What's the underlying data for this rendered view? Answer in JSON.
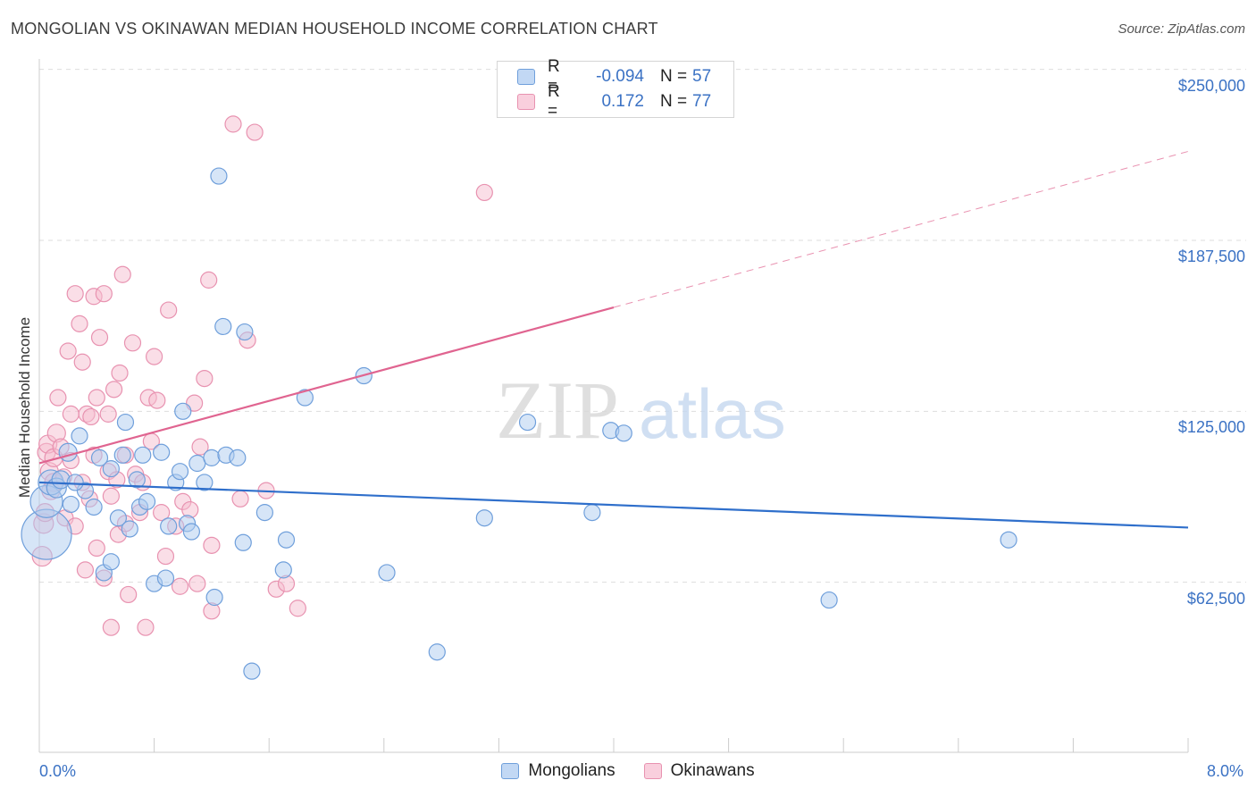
{
  "title": "MONGOLIAN VS OKINAWAN MEDIAN HOUSEHOLD INCOME CORRELATION CHART",
  "source": "Source: ZipAtlas.com",
  "watermark": {
    "zip": "ZIP",
    "atlas": "atlas"
  },
  "legend": {
    "rows": [
      {
        "r_label": "R =",
        "r_value": "-0.094",
        "n_label": "N =",
        "n_value": "57"
      },
      {
        "r_label": "R =",
        "r_value": "0.172",
        "n_label": "N =",
        "n_value": "77"
      }
    ]
  },
  "colors": {
    "mongolians_fill": "#aecbf0",
    "mongolians_stroke": "#6f9fdb",
    "mongolians_line": "#2f6fcb",
    "okinawans_fill": "#f6bdd0",
    "okinawans_stroke": "#e892b0",
    "okinawans_line": "#e06490",
    "tick_label": "#3b72c4",
    "grid": "#dddddd"
  },
  "chart_data": {
    "type": "scatter",
    "title": "MONGOLIAN VS OKINAWAN MEDIAN HOUSEHOLD INCOME CORRELATION CHART",
    "ylabel": "Median Household Income",
    "xlabel": "",
    "xlim": [
      0,
      8
    ],
    "ylim": [
      0,
      260000
    ],
    "x_tick_labels": [
      "0.0%",
      "8.0%"
    ],
    "y_ticks": [
      {
        "value": 62500,
        "label": "$62,500"
      },
      {
        "value": 125000,
        "label": "$125,000"
      },
      {
        "value": 187500,
        "label": "$187,500"
      },
      {
        "value": 250000,
        "label": "$250,000"
      }
    ],
    "grid": "horizontal dashed",
    "legend_placement": "bottom-center",
    "series": [
      {
        "name": "Mongolians",
        "r": -0.094,
        "n": 57,
        "trend": {
          "x": [
            0,
            8
          ],
          "y": [
            99000,
            82500
          ],
          "dashed_from": null
        },
        "points": [
          {
            "x": 0.05,
            "y": 80000,
            "s": 28
          },
          {
            "x": 0.05,
            "y": 92000,
            "s": 18
          },
          {
            "x": 0.08,
            "y": 99000,
            "s": 14
          },
          {
            "x": 0.12,
            "y": 97000,
            "s": 11
          },
          {
            "x": 0.15,
            "y": 100000,
            "s": 10
          },
          {
            "x": 0.2,
            "y": 110000,
            "s": 10
          },
          {
            "x": 0.28,
            "y": 116000,
            "s": 9
          },
          {
            "x": 0.32,
            "y": 96000,
            "s": 9
          },
          {
            "x": 0.22,
            "y": 91000,
            "s": 9
          },
          {
            "x": 0.38,
            "y": 90000,
            "s": 9
          },
          {
            "x": 0.42,
            "y": 108000,
            "s": 9
          },
          {
            "x": 0.45,
            "y": 66000,
            "s": 9
          },
          {
            "x": 0.5,
            "y": 104000,
            "s": 9
          },
          {
            "x": 0.5,
            "y": 70000,
            "s": 9
          },
          {
            "x": 0.55,
            "y": 86000,
            "s": 9
          },
          {
            "x": 0.58,
            "y": 109000,
            "s": 9
          },
          {
            "x": 0.6,
            "y": 121000,
            "s": 9
          },
          {
            "x": 0.63,
            "y": 82000,
            "s": 9
          },
          {
            "x": 0.68,
            "y": 100000,
            "s": 9
          },
          {
            "x": 0.7,
            "y": 90000,
            "s": 9
          },
          {
            "x": 0.72,
            "y": 109000,
            "s": 9
          },
          {
            "x": 0.75,
            "y": 92000,
            "s": 9
          },
          {
            "x": 0.8,
            "y": 62000,
            "s": 9
          },
          {
            "x": 0.85,
            "y": 110000,
            "s": 9
          },
          {
            "x": 0.88,
            "y": 64000,
            "s": 9
          },
          {
            "x": 0.9,
            "y": 83000,
            "s": 9
          },
          {
            "x": 0.95,
            "y": 99000,
            "s": 9
          },
          {
            "x": 0.98,
            "y": 103000,
            "s": 9
          },
          {
            "x": 1.0,
            "y": 125000,
            "s": 9
          },
          {
            "x": 1.03,
            "y": 84000,
            "s": 9
          },
          {
            "x": 1.06,
            "y": 81000,
            "s": 9
          },
          {
            "x": 1.1,
            "y": 106000,
            "s": 9
          },
          {
            "x": 1.15,
            "y": 99000,
            "s": 9
          },
          {
            "x": 1.2,
            "y": 108000,
            "s": 9
          },
          {
            "x": 1.22,
            "y": 57000,
            "s": 9
          },
          {
            "x": 1.25,
            "y": 211000,
            "s": 9
          },
          {
            "x": 1.28,
            "y": 156000,
            "s": 9
          },
          {
            "x": 1.3,
            "y": 109000,
            "s": 9
          },
          {
            "x": 1.38,
            "y": 108000,
            "s": 9
          },
          {
            "x": 1.42,
            "y": 77000,
            "s": 9
          },
          {
            "x": 1.43,
            "y": 154000,
            "s": 9
          },
          {
            "x": 1.48,
            "y": 30000,
            "s": 9
          },
          {
            "x": 1.57,
            "y": 88000,
            "s": 9
          },
          {
            "x": 1.7,
            "y": 67000,
            "s": 9
          },
          {
            "x": 1.72,
            "y": 78000,
            "s": 9
          },
          {
            "x": 1.85,
            "y": 130000,
            "s": 9
          },
          {
            "x": 2.26,
            "y": 138000,
            "s": 9
          },
          {
            "x": 2.42,
            "y": 66000,
            "s": 9
          },
          {
            "x": 2.77,
            "y": 37000,
            "s": 9
          },
          {
            "x": 3.1,
            "y": 86000,
            "s": 9
          },
          {
            "x": 3.4,
            "y": 121000,
            "s": 9
          },
          {
            "x": 3.85,
            "y": 88000,
            "s": 9
          },
          {
            "x": 3.98,
            "y": 118000,
            "s": 9
          },
          {
            "x": 4.07,
            "y": 117000,
            "s": 9
          },
          {
            "x": 5.5,
            "y": 56000,
            "s": 9
          },
          {
            "x": 6.75,
            "y": 78000,
            "s": 9
          },
          {
            "x": 0.25,
            "y": 99000,
            "s": 9
          }
        ]
      },
      {
        "name": "Okinawans",
        "r": 0.172,
        "n": 77,
        "trend": {
          "x": [
            0,
            8
          ],
          "y": [
            106000,
            220000
          ],
          "dashed_from": 4.0
        },
        "points": [
          {
            "x": 0.02,
            "y": 72000,
            "s": 11
          },
          {
            "x": 0.03,
            "y": 84000,
            "s": 11
          },
          {
            "x": 0.04,
            "y": 88000,
            "s": 10
          },
          {
            "x": 0.05,
            "y": 110000,
            "s": 10
          },
          {
            "x": 0.06,
            "y": 113000,
            "s": 10
          },
          {
            "x": 0.07,
            "y": 103000,
            "s": 10
          },
          {
            "x": 0.08,
            "y": 96000,
            "s": 10
          },
          {
            "x": 0.1,
            "y": 108000,
            "s": 10
          },
          {
            "x": 0.1,
            "y": 99000,
            "s": 10
          },
          {
            "x": 0.12,
            "y": 117000,
            "s": 10
          },
          {
            "x": 0.13,
            "y": 130000,
            "s": 9
          },
          {
            "x": 0.15,
            "y": 112000,
            "s": 9
          },
          {
            "x": 0.17,
            "y": 101000,
            "s": 9
          },
          {
            "x": 0.18,
            "y": 86000,
            "s": 9
          },
          {
            "x": 0.2,
            "y": 147000,
            "s": 9
          },
          {
            "x": 0.22,
            "y": 124000,
            "s": 9
          },
          {
            "x": 0.22,
            "y": 107000,
            "s": 9
          },
          {
            "x": 0.25,
            "y": 168000,
            "s": 9
          },
          {
            "x": 0.25,
            "y": 83000,
            "s": 9
          },
          {
            "x": 0.28,
            "y": 157000,
            "s": 9
          },
          {
            "x": 0.3,
            "y": 143000,
            "s": 9
          },
          {
            "x": 0.3,
            "y": 99000,
            "s": 9
          },
          {
            "x": 0.32,
            "y": 67000,
            "s": 9
          },
          {
            "x": 0.33,
            "y": 124000,
            "s": 9
          },
          {
            "x": 0.35,
            "y": 93000,
            "s": 9
          },
          {
            "x": 0.36,
            "y": 123000,
            "s": 9
          },
          {
            "x": 0.38,
            "y": 167000,
            "s": 9
          },
          {
            "x": 0.4,
            "y": 130000,
            "s": 9
          },
          {
            "x": 0.4,
            "y": 75000,
            "s": 9
          },
          {
            "x": 0.42,
            "y": 152000,
            "s": 9
          },
          {
            "x": 0.45,
            "y": 64000,
            "s": 9
          },
          {
            "x": 0.45,
            "y": 168000,
            "s": 9
          },
          {
            "x": 0.48,
            "y": 124000,
            "s": 9
          },
          {
            "x": 0.48,
            "y": 103000,
            "s": 9
          },
          {
            "x": 0.5,
            "y": 94000,
            "s": 9
          },
          {
            "x": 0.5,
            "y": 46000,
            "s": 9
          },
          {
            "x": 0.52,
            "y": 133000,
            "s": 9
          },
          {
            "x": 0.54,
            "y": 100000,
            "s": 9
          },
          {
            "x": 0.55,
            "y": 80000,
            "s": 9
          },
          {
            "x": 0.56,
            "y": 139000,
            "s": 9
          },
          {
            "x": 0.58,
            "y": 175000,
            "s": 9
          },
          {
            "x": 0.6,
            "y": 84000,
            "s": 9
          },
          {
            "x": 0.62,
            "y": 58000,
            "s": 9
          },
          {
            "x": 0.65,
            "y": 150000,
            "s": 9
          },
          {
            "x": 0.67,
            "y": 102000,
            "s": 9
          },
          {
            "x": 0.7,
            "y": 88000,
            "s": 9
          },
          {
            "x": 0.72,
            "y": 99000,
            "s": 9
          },
          {
            "x": 0.74,
            "y": 46000,
            "s": 9
          },
          {
            "x": 0.76,
            "y": 130000,
            "s": 9
          },
          {
            "x": 0.78,
            "y": 114000,
            "s": 9
          },
          {
            "x": 0.8,
            "y": 145000,
            "s": 9
          },
          {
            "x": 0.82,
            "y": 129000,
            "s": 9
          },
          {
            "x": 0.85,
            "y": 88000,
            "s": 9
          },
          {
            "x": 0.88,
            "y": 72000,
            "s": 9
          },
          {
            "x": 0.9,
            "y": 162000,
            "s": 9
          },
          {
            "x": 0.95,
            "y": 83000,
            "s": 9
          },
          {
            "x": 1.0,
            "y": 92000,
            "s": 9
          },
          {
            "x": 1.05,
            "y": 89000,
            "s": 9
          },
          {
            "x": 1.08,
            "y": 128000,
            "s": 9
          },
          {
            "x": 1.1,
            "y": 62000,
            "s": 9
          },
          {
            "x": 1.12,
            "y": 112000,
            "s": 9
          },
          {
            "x": 1.15,
            "y": 137000,
            "s": 9
          },
          {
            "x": 1.18,
            "y": 173000,
            "s": 9
          },
          {
            "x": 1.2,
            "y": 52000,
            "s": 9
          },
          {
            "x": 1.2,
            "y": 76000,
            "s": 9
          },
          {
            "x": 1.35,
            "y": 230000,
            "s": 9
          },
          {
            "x": 1.4,
            "y": 93000,
            "s": 9
          },
          {
            "x": 1.45,
            "y": 151000,
            "s": 9
          },
          {
            "x": 1.5,
            "y": 227000,
            "s": 9
          },
          {
            "x": 1.58,
            "y": 96000,
            "s": 9
          },
          {
            "x": 1.65,
            "y": 60000,
            "s": 9
          },
          {
            "x": 1.72,
            "y": 62000,
            "s": 9
          },
          {
            "x": 1.8,
            "y": 53000,
            "s": 9
          },
          {
            "x": 3.1,
            "y": 205000,
            "s": 9
          },
          {
            "x": 0.98,
            "y": 61000,
            "s": 9
          },
          {
            "x": 0.6,
            "y": 109000,
            "s": 9
          },
          {
            "x": 0.38,
            "y": 109000,
            "s": 9
          }
        ]
      }
    ]
  }
}
